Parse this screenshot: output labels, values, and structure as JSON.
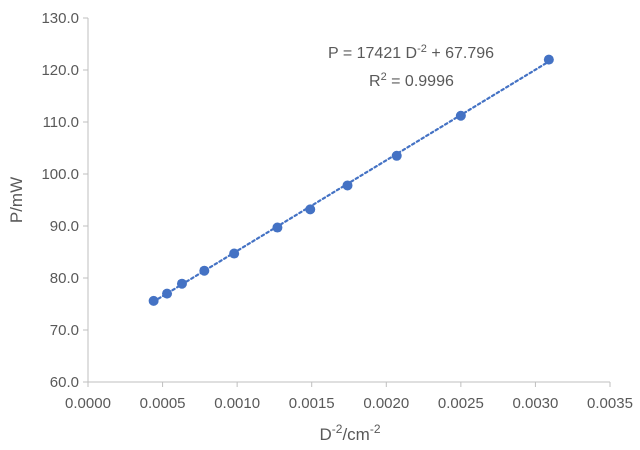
{
  "chart_data": {
    "type": "scatter",
    "xlabel_main": "D",
    "xlabel_sup1": "-2",
    "xlabel_mid": "/cm",
    "xlabel_sup2": "-2",
    "ylabel": "P/mW",
    "xlim": [
      0,
      0.0035
    ],
    "ylim": [
      60,
      130
    ],
    "x_ticks": [
      "0.0000",
      "0.0005",
      "0.0010",
      "0.0015",
      "0.0020",
      "0.0025",
      "0.0030",
      "0.0035"
    ],
    "y_ticks": [
      "60.0",
      "70.0",
      "80.0",
      "90.0",
      "100.0",
      "110.0",
      "120.0",
      "130.0"
    ],
    "grid": false,
    "points": [
      {
        "x": 0.00044,
        "y": 75.6
      },
      {
        "x": 0.00053,
        "y": 77.0
      },
      {
        "x": 0.00063,
        "y": 78.9
      },
      {
        "x": 0.00078,
        "y": 81.4
      },
      {
        "x": 0.00098,
        "y": 84.7
      },
      {
        "x": 0.00127,
        "y": 89.7
      },
      {
        "x": 0.00149,
        "y": 93.2
      },
      {
        "x": 0.00174,
        "y": 97.8
      },
      {
        "x": 0.00207,
        "y": 103.5
      },
      {
        "x": 0.0025,
        "y": 111.2
      },
      {
        "x": 0.00309,
        "y": 122.0
      }
    ],
    "trendline": {
      "type": "linear",
      "slope": 17421,
      "intercept": 67.796,
      "r_squared": 0.9996,
      "x_range": [
        0.00044,
        0.00309
      ],
      "style": "dotted"
    },
    "annotation": {
      "equation_prefix": "P = 17421 D",
      "equation_sup": "-2",
      "equation_suffix": " + 67.796",
      "r2_label_main": "R",
      "r2_label_sup": "2",
      "r2_value_text": " = 0.9996"
    },
    "colors": {
      "marker": "#4472C4",
      "trendline": "#4472C4",
      "axis": "#bfbfbf",
      "text": "#595959"
    }
  }
}
